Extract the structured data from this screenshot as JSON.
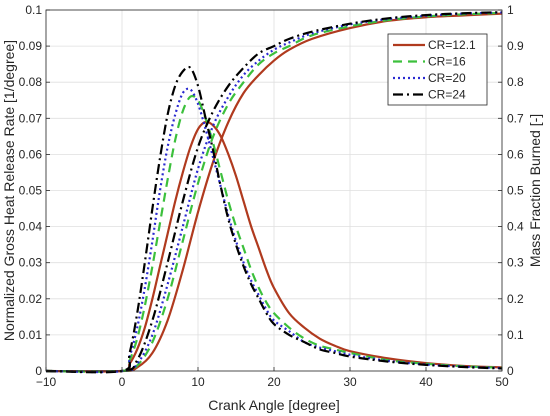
{
  "chart_data": {
    "type": "line",
    "title": "",
    "xlabel": "Crank Angle [degree]",
    "ylabel_left": "Normalized Gross Heat Release Rate [1/degree]",
    "ylabel_right": "Mass Fraction Burned [-]",
    "xlim": [
      -10,
      50
    ],
    "ylim_left": [
      0,
      0.1
    ],
    "ylim_right": [
      0,
      1
    ],
    "x_ticks": [
      "−10",
      "0",
      "10",
      "20",
      "30",
      "40",
      "50"
    ],
    "y_ticks_left": [
      "0",
      "0.01",
      "0.02",
      "0.03",
      "0.04",
      "0.05",
      "0.06",
      "0.07",
      "0.08",
      "0.09",
      "0.1"
    ],
    "y_ticks_right": [
      "0",
      "0.1",
      "0.2",
      "0.3",
      "0.4",
      "0.5",
      "0.6",
      "0.7",
      "0.8",
      "0.9",
      "1"
    ],
    "grid": true,
    "legend_position": "top-right",
    "series": [
      {
        "name": "CR=12.1",
        "color": "#b03a1e",
        "dash": "solid",
        "hrr_x": [
          -10,
          0,
          1,
          2,
          3,
          4,
          5,
          6,
          7,
          8,
          9,
          10,
          11,
          12,
          13,
          14,
          15,
          16,
          17,
          18,
          19,
          20,
          22,
          24,
          26,
          28,
          30,
          35,
          40,
          45,
          50
        ],
        "hrr_y": [
          0,
          0,
          0.002,
          0.006,
          0.012,
          0.02,
          0.029,
          0.038,
          0.047,
          0.055,
          0.062,
          0.067,
          0.069,
          0.068,
          0.065,
          0.06,
          0.054,
          0.047,
          0.04,
          0.034,
          0.028,
          0.023,
          0.016,
          0.012,
          0.009,
          0.007,
          0.0055,
          0.0035,
          0.0022,
          0.0014,
          0.001
        ],
        "mfb_x": [
          -10,
          0,
          2,
          4,
          6,
          8,
          10,
          12,
          14,
          16,
          18,
          20,
          22,
          25,
          30,
          35,
          40,
          45,
          50
        ],
        "mfb_y": [
          0,
          0,
          0.01,
          0.05,
          0.14,
          0.28,
          0.44,
          0.58,
          0.69,
          0.77,
          0.82,
          0.86,
          0.89,
          0.92,
          0.95,
          0.97,
          0.98,
          0.985,
          0.99
        ]
      },
      {
        "name": "CR=16",
        "color": "#3cc03c",
        "dash": "9,6",
        "hrr_x": [
          -10,
          0,
          1,
          2,
          3,
          4,
          5,
          6,
          7,
          8,
          9,
          10,
          11,
          12,
          13,
          14,
          15,
          16,
          17,
          18,
          19,
          20,
          22,
          24,
          26,
          28,
          30,
          35,
          40,
          45,
          50
        ],
        "hrr_y": [
          0,
          0,
          0.003,
          0.009,
          0.018,
          0.029,
          0.041,
          0.053,
          0.064,
          0.072,
          0.076,
          0.075,
          0.07,
          0.063,
          0.055,
          0.047,
          0.04,
          0.034,
          0.028,
          0.023,
          0.019,
          0.016,
          0.012,
          0.009,
          0.007,
          0.006,
          0.005,
          0.003,
          0.002,
          0.0013,
          0.0009
        ],
        "mfb_x": [
          -10,
          0,
          2,
          4,
          6,
          8,
          10,
          12,
          14,
          16,
          18,
          20,
          22,
          25,
          30,
          35,
          40,
          45,
          50
        ],
        "mfb_y": [
          0,
          0,
          0.015,
          0.08,
          0.2,
          0.36,
          0.52,
          0.65,
          0.74,
          0.8,
          0.85,
          0.88,
          0.9,
          0.93,
          0.955,
          0.972,
          0.982,
          0.988,
          0.992
        ]
      },
      {
        "name": "CR=20",
        "color": "#2a2ad0",
        "dash": "2,3",
        "hrr_x": [
          -10,
          0,
          1,
          2,
          3,
          4,
          5,
          6,
          7,
          8,
          9,
          10,
          11,
          12,
          13,
          14,
          15,
          16,
          17,
          18,
          19,
          20,
          22,
          24,
          26,
          28,
          30,
          35,
          40,
          45,
          50
        ],
        "hrr_y": [
          0,
          0,
          0.004,
          0.012,
          0.023,
          0.036,
          0.05,
          0.062,
          0.071,
          0.077,
          0.078,
          0.074,
          0.067,
          0.059,
          0.051,
          0.043,
          0.036,
          0.03,
          0.025,
          0.021,
          0.017,
          0.014,
          0.011,
          0.008,
          0.0065,
          0.0055,
          0.0045,
          0.0028,
          0.0018,
          0.0012,
          0.0008
        ],
        "mfb_x": [
          -10,
          0,
          2,
          4,
          6,
          8,
          10,
          12,
          14,
          16,
          18,
          20,
          22,
          25,
          30,
          35,
          40,
          45,
          50
        ],
        "mfb_y": [
          0,
          0,
          0.02,
          0.1,
          0.24,
          0.4,
          0.56,
          0.68,
          0.76,
          0.82,
          0.86,
          0.89,
          0.91,
          0.935,
          0.96,
          0.975,
          0.984,
          0.99,
          0.993
        ]
      },
      {
        "name": "CR=24",
        "color": "#000000",
        "dash": "10,4,2,4",
        "hrr_x": [
          -10,
          0,
          1,
          2,
          3,
          4,
          5,
          6,
          7,
          8,
          9,
          10,
          11,
          12,
          13,
          14,
          15,
          16,
          17,
          18,
          19,
          20,
          22,
          24,
          26,
          28,
          30,
          35,
          40,
          45,
          50
        ],
        "hrr_y": [
          0,
          0,
          0.005,
          0.016,
          0.03,
          0.045,
          0.059,
          0.071,
          0.079,
          0.083,
          0.084,
          0.079,
          0.07,
          0.061,
          0.051,
          0.042,
          0.035,
          0.029,
          0.024,
          0.02,
          0.016,
          0.013,
          0.01,
          0.008,
          0.006,
          0.005,
          0.004,
          0.0026,
          0.0017,
          0.0011,
          0.0007
        ],
        "mfb_x": [
          -10,
          0,
          2,
          4,
          6,
          8,
          10,
          12,
          14,
          16,
          18,
          20,
          22,
          25,
          30,
          35,
          40,
          45,
          50
        ],
        "mfb_y": [
          0,
          0,
          0.03,
          0.14,
          0.3,
          0.47,
          0.62,
          0.72,
          0.79,
          0.84,
          0.88,
          0.9,
          0.92,
          0.94,
          0.962,
          0.977,
          0.986,
          0.991,
          0.994
        ]
      }
    ]
  }
}
